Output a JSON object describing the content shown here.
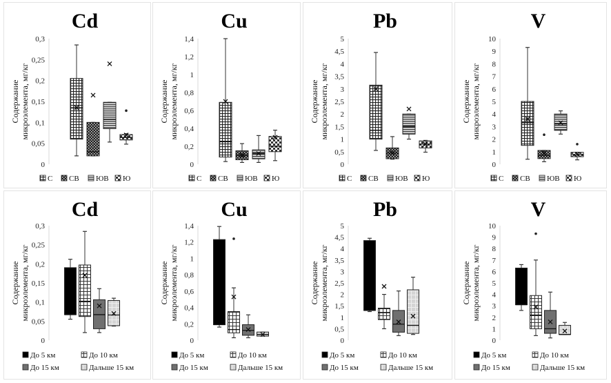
{
  "figure": {
    "ylabel_line1": "Содержание",
    "ylabel_line2": "микроэлемента, мг/кг"
  },
  "chart_data": [
    {
      "type": "boxplot",
      "title": "Cd",
      "row": "top",
      "ylim": [
        0,
        0.3
      ],
      "yticks": [
        "0",
        "0,05",
        "0,1",
        "0,15",
        "0,2",
        "0,25",
        "0,3"
      ],
      "ytick_values": [
        0,
        0.05,
        0.1,
        0.15,
        0.2,
        0.25,
        0.3
      ],
      "legend": [
        "С",
        "СВ",
        "ЮВ",
        "Ю"
      ],
      "legend_position": "bottom",
      "series": [
        {
          "name": "С",
          "min": 0.02,
          "q1": 0.06,
          "median": 0.135,
          "q3": 0.205,
          "max": 0.285,
          "mean": 0.135,
          "outliers": []
        },
        {
          "name": "СВ",
          "min": 0.02,
          "q1": 0.02,
          "median": 0.03,
          "q3": 0.1,
          "max": 0.1,
          "mean": 0.165,
          "outliers": []
        },
        {
          "name": "ЮВ",
          "min": 0.053,
          "q1": 0.085,
          "median": 0.107,
          "q3": 0.148,
          "max": 0.148,
          "mean": 0.24,
          "outliers": []
        },
        {
          "name": "Ю",
          "min": 0.048,
          "q1": 0.058,
          "median": 0.064,
          "q3": 0.071,
          "max": 0.073,
          "mean": 0.07,
          "outliers": [
            0.128
          ]
        }
      ]
    },
    {
      "type": "boxplot",
      "title": "Cu",
      "row": "top",
      "ylim": [
        0,
        1.4
      ],
      "yticks": [
        "0",
        "0,2",
        "0,4",
        "0,6",
        "0,8",
        "1",
        "1,2",
        "1,4"
      ],
      "ytick_values": [
        0,
        0.2,
        0.4,
        0.6,
        0.8,
        1,
        1.2,
        1.4
      ],
      "legend": [
        "С",
        "СВ",
        "ЮВ",
        "Ю"
      ],
      "legend_position": "bottom",
      "series": [
        {
          "name": "С",
          "min": 0.03,
          "q1": 0.08,
          "median": 0.25,
          "q3": 0.69,
          "max": 1.4,
          "mean": 0.7,
          "outliers": []
        },
        {
          "name": "СВ",
          "min": 0.02,
          "q1": 0.05,
          "median": 0.1,
          "q3": 0.15,
          "max": 0.23,
          "mean": 0.1,
          "outliers": []
        },
        {
          "name": "ЮВ",
          "min": 0.02,
          "q1": 0.06,
          "median": 0.12,
          "q3": 0.16,
          "max": 0.32,
          "mean": 0.12,
          "outliers": []
        },
        {
          "name": "Ю",
          "min": 0.04,
          "q1": 0.14,
          "median": 0.2,
          "q3": 0.31,
          "max": 0.38,
          "mean": 0.3,
          "outliers": []
        }
      ]
    },
    {
      "type": "boxplot",
      "title": "Pb",
      "row": "top",
      "ylim": [
        0,
        5
      ],
      "yticks": [
        "0",
        "0,5",
        "1",
        "1,5",
        "2",
        "2,5",
        "3",
        "3,5",
        "4",
        "4,5",
        "5"
      ],
      "ytick_values": [
        0,
        0.5,
        1,
        1.5,
        2,
        2.5,
        3,
        3.5,
        4,
        4.5,
        5
      ],
      "legend": [
        "С",
        "СВ",
        "ЮВ",
        "Ю"
      ],
      "legend_position": "bottom",
      "series": [
        {
          "name": "С",
          "min": 0.55,
          "q1": 1.0,
          "median": 1.35,
          "q3": 3.15,
          "max": 4.45,
          "mean": 3.0,
          "outliers": []
        },
        {
          "name": "СВ",
          "min": 0.2,
          "q1": 0.22,
          "median": 0.45,
          "q3": 0.65,
          "max": 1.1,
          "mean": 0.45,
          "outliers": []
        },
        {
          "name": "ЮВ",
          "min": 1.0,
          "q1": 1.2,
          "median": 1.5,
          "q3": 2.0,
          "max": 2.0,
          "mean": 2.2,
          "outliers": []
        },
        {
          "name": "Ю",
          "min": 0.48,
          "q1": 0.65,
          "median": 0.8,
          "q3": 0.93,
          "max": 0.95,
          "mean": 0.8,
          "outliers": []
        }
      ]
    },
    {
      "type": "boxplot",
      "title": "V",
      "row": "top",
      "ylim": [
        0,
        10
      ],
      "yticks": [
        "0",
        "1",
        "2",
        "3",
        "4",
        "5",
        "6",
        "7",
        "8",
        "9",
        "10"
      ],
      "ytick_values": [
        0,
        1,
        2,
        3,
        4,
        5,
        6,
        7,
        8,
        9,
        10
      ],
      "legend": [
        "С",
        "СВ",
        "ЮВ",
        "Ю"
      ],
      "legend_position": "bottom",
      "series": [
        {
          "name": "С",
          "min": 0.4,
          "q1": 1.5,
          "median": 3.3,
          "q3": 5.0,
          "max": 9.3,
          "mean": 3.6,
          "outliers": []
        },
        {
          "name": "СВ",
          "min": 0.2,
          "q1": 0.45,
          "median": 0.7,
          "q3": 1.1,
          "max": 1.1,
          "mean": 0.9,
          "outliers": [
            2.35
          ]
        },
        {
          "name": "ЮВ",
          "min": 2.4,
          "q1": 2.7,
          "median": 3.2,
          "q3": 4.0,
          "max": 4.25,
          "mean": 3.3,
          "outliers": []
        },
        {
          "name": "Ю",
          "min": 0.35,
          "q1": 0.6,
          "median": 0.75,
          "q3": 0.95,
          "max": 0.95,
          "mean": 0.8,
          "outliers": [
            1.6
          ]
        }
      ]
    },
    {
      "type": "boxplot",
      "title": "Cd",
      "row": "bottom",
      "ylim": [
        0,
        0.3
      ],
      "yticks": [
        "0",
        "0,05",
        "0,1",
        "0,15",
        "0,2",
        "0,25",
        "0,3"
      ],
      "ytick_values": [
        0,
        0.05,
        0.1,
        0.15,
        0.2,
        0.25,
        0.3
      ],
      "legend": [
        "До 5 км",
        "До 10 км",
        "До 15 км",
        "Дальше 15 км"
      ],
      "legend_position": "bottom",
      "series": [
        {
          "name": "До 5 км",
          "min": 0.055,
          "q1": 0.067,
          "median": 0.067,
          "q3": 0.19,
          "max": 0.212,
          "mean": null,
          "outliers": []
        },
        {
          "name": "До 10 км",
          "min": 0.02,
          "q1": 0.062,
          "median": 0.102,
          "q3": 0.197,
          "max": 0.285,
          "mean": 0.17,
          "outliers": []
        },
        {
          "name": "До 15 км",
          "min": 0.02,
          "q1": 0.03,
          "median": 0.067,
          "q3": 0.106,
          "max": 0.135,
          "mean": 0.09,
          "outliers": []
        },
        {
          "name": "Дальше 15 км",
          "min": 0.037,
          "q1": 0.038,
          "median": 0.066,
          "q3": 0.104,
          "max": 0.11,
          "mean": 0.07,
          "outliers": []
        }
      ]
    },
    {
      "type": "boxplot",
      "title": "Cu",
      "row": "bottom",
      "ylim": [
        0,
        1.4
      ],
      "yticks": [
        "0",
        "0,2",
        "0,4",
        "0,6",
        "0,8",
        "1",
        "1,2",
        "1,4"
      ],
      "ytick_values": [
        0,
        0.2,
        0.4,
        0.6,
        0.8,
        1,
        1.2,
        1.4
      ],
      "legend": [
        "До 5 км",
        "До 10 км",
        "До 15 км",
        "Дальше 15 км"
      ],
      "legend_position": "bottom",
      "series": [
        {
          "name": "До 5 км",
          "min": 0.16,
          "q1": 0.19,
          "median": 0.19,
          "q3": 1.23,
          "max": 1.39,
          "mean": null,
          "outliers": []
        },
        {
          "name": "До 10 км",
          "min": 0.03,
          "q1": 0.09,
          "median": 0.13,
          "q3": 0.35,
          "max": 0.64,
          "mean": 0.53,
          "outliers": [
            1.24
          ]
        },
        {
          "name": "До 15 км",
          "min": 0.03,
          "q1": 0.06,
          "median": 0.12,
          "q3": 0.19,
          "max": 0.31,
          "mean": 0.13,
          "outliers": []
        },
        {
          "name": "Дальше 15 км",
          "min": 0.05,
          "q1": 0.05,
          "median": 0.07,
          "q3": 0.1,
          "max": 0.1,
          "mean": 0.07,
          "outliers": []
        }
      ]
    },
    {
      "type": "boxplot",
      "title": "Pb",
      "row": "bottom",
      "ylim": [
        0,
        5
      ],
      "yticks": [
        "0",
        "0,5",
        "1",
        "1,5",
        "2",
        "2,5",
        "3",
        "3,5",
        "4",
        "4,5",
        "5"
      ],
      "ytick_values": [
        0,
        0.5,
        1,
        1.5,
        2,
        2.5,
        3,
        3.5,
        4,
        4.5,
        5
      ],
      "legend": [
        "До 5 км",
        "До 10 км",
        "До 15 км",
        "Дальше 15 км"
      ],
      "legend_position": "bottom",
      "series": [
        {
          "name": "До 5 км",
          "min": 1.25,
          "q1": 1.3,
          "median": 1.3,
          "q3": 4.35,
          "max": 4.45,
          "mean": null,
          "outliers": []
        },
        {
          "name": "До 10 км",
          "min": 0.5,
          "q1": 0.9,
          "median": 1.2,
          "q3": 1.4,
          "max": 2.0,
          "mean": 2.35,
          "outliers": []
        },
        {
          "name": "До 15 км",
          "min": 0.2,
          "q1": 0.35,
          "median": 0.7,
          "q3": 1.3,
          "max": 2.15,
          "mean": 0.8,
          "outliers": []
        },
        {
          "name": "Дальше 15 км",
          "min": 0.25,
          "q1": 0.3,
          "median": 0.65,
          "q3": 2.2,
          "max": 2.75,
          "mean": 1.05,
          "outliers": []
        }
      ]
    },
    {
      "type": "boxplot",
      "title": "V",
      "row": "bottom",
      "ylim": [
        0,
        10
      ],
      "yticks": [
        "0",
        "1",
        "2",
        "3",
        "4",
        "5",
        "6",
        "7",
        "8",
        "9",
        "10"
      ],
      "ytick_values": [
        0,
        1,
        2,
        3,
        4,
        5,
        6,
        7,
        8,
        9,
        10
      ],
      "legend": [
        "До 5 км",
        "До 10 км",
        "До 15 км",
        "Дальше 15 км"
      ],
      "legend_position": "bottom",
      "series": [
        {
          "name": "До 5 км",
          "min": 2.6,
          "q1": 3.1,
          "median": 3.1,
          "q3": 6.3,
          "max": 6.6,
          "mean": null,
          "outliers": []
        },
        {
          "name": "До 10 км",
          "min": 0.4,
          "q1": 1.0,
          "median": 2.2,
          "q3": 3.9,
          "max": 7.0,
          "mean": 2.9,
          "outliers": [
            9.3
          ]
        },
        {
          "name": "До 15 км",
          "min": 0.2,
          "q1": 0.6,
          "median": 1.0,
          "q3": 2.6,
          "max": 4.2,
          "mean": 1.6,
          "outliers": []
        },
        {
          "name": "Дальше 15 км",
          "min": 0.5,
          "q1": 0.5,
          "median": 0.5,
          "q3": 1.3,
          "max": 1.55,
          "mean": 0.8,
          "outliers": []
        }
      ]
    }
  ]
}
